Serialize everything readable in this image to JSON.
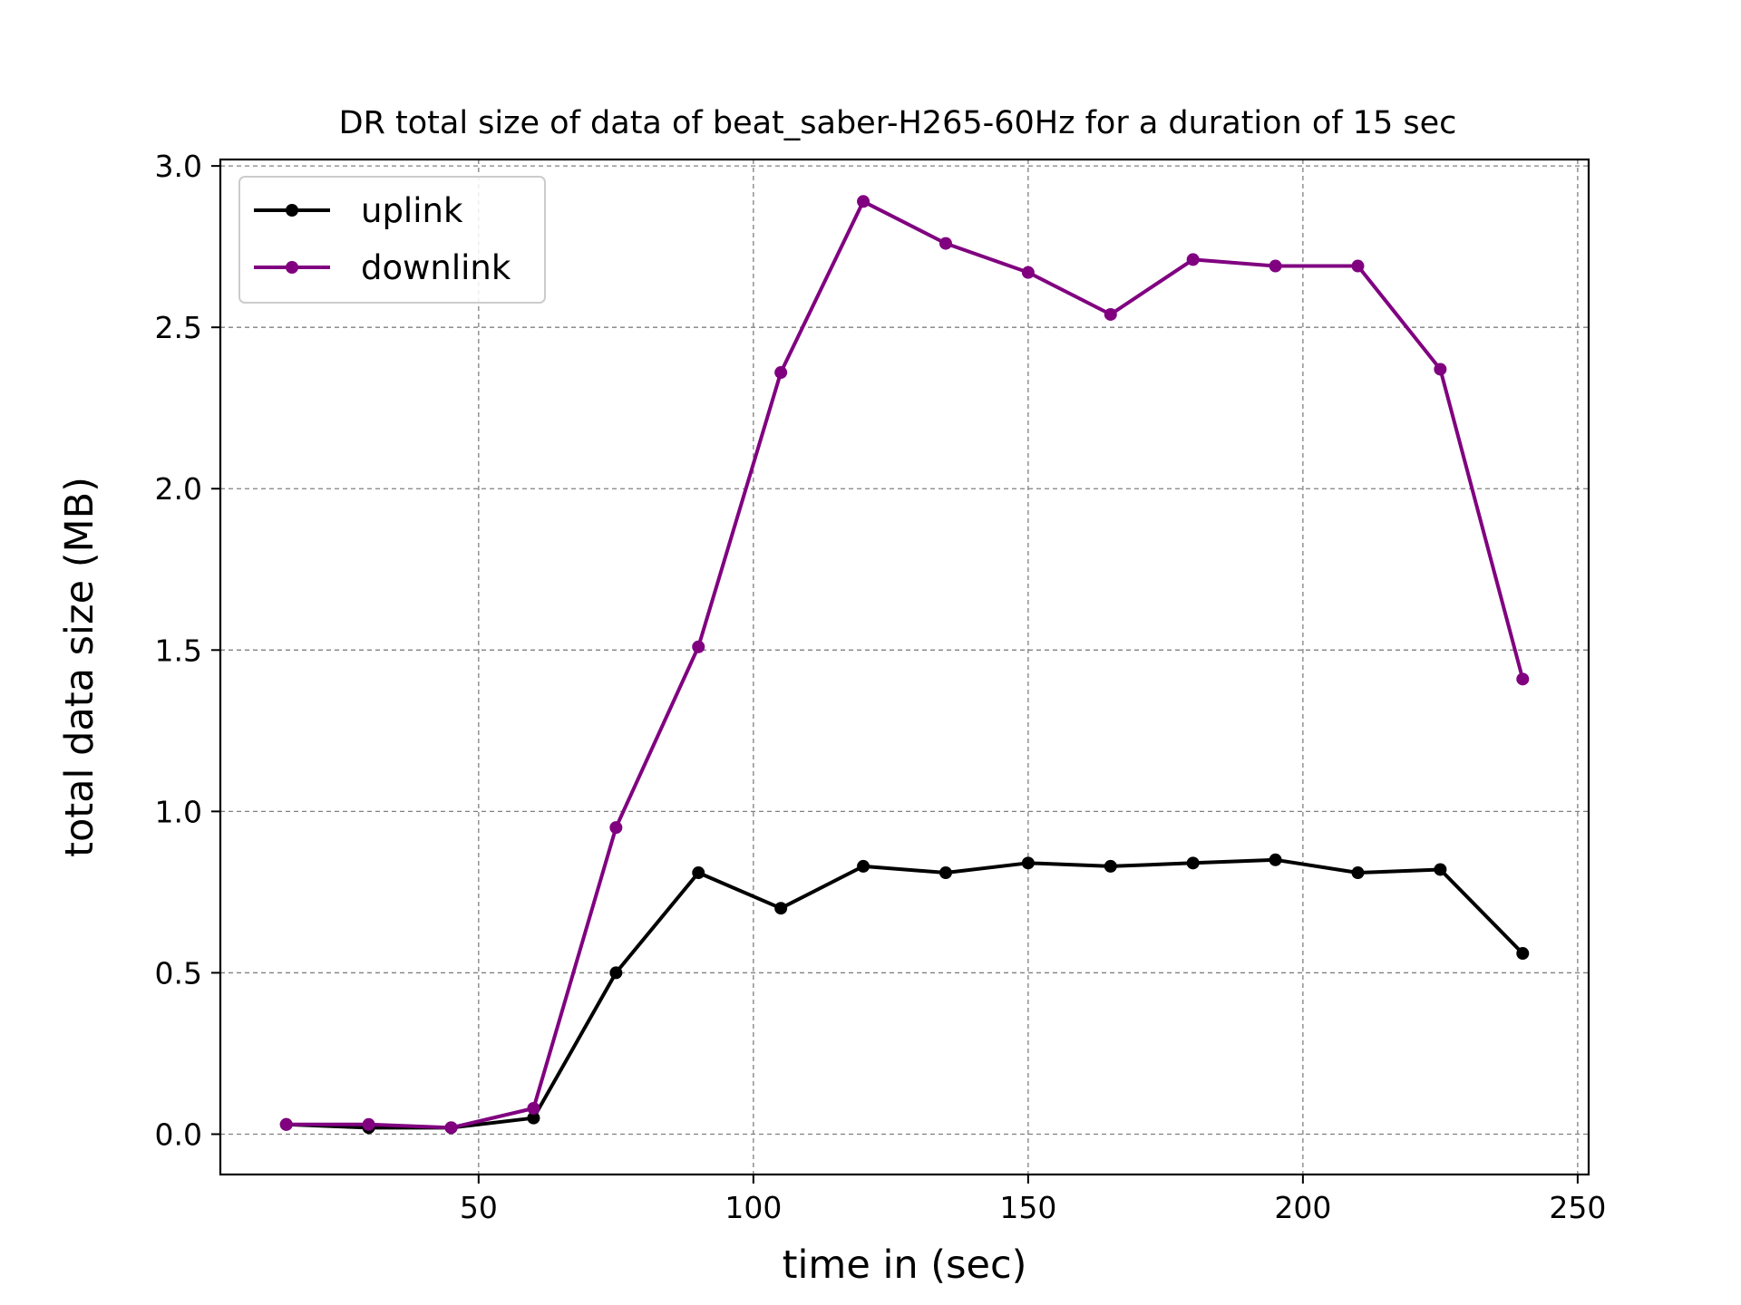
{
  "chart_data": {
    "type": "line",
    "title": "DR total size of data of beat_saber-H265-60Hz for a duration of 15 sec",
    "xlabel": "time in (sec)",
    "ylabel": "total data size (MB)",
    "xlim": [
      3,
      252
    ],
    "ylim": [
      -0.125,
      3.02
    ],
    "xticks": [
      50,
      100,
      150,
      200,
      250
    ],
    "xtick_labels": [
      "50",
      "100",
      "150",
      "200",
      "250"
    ],
    "yticks": [
      0.0,
      0.5,
      1.0,
      1.5,
      2.0,
      2.5,
      3.0
    ],
    "ytick_labels": [
      "0.0",
      "0.5",
      "1.0",
      "1.5",
      "2.0",
      "2.5",
      "3.0"
    ],
    "grid": true,
    "legend_position": "top-left",
    "x": [
      15,
      30,
      45,
      60,
      75,
      90,
      105,
      120,
      135,
      150,
      165,
      180,
      195,
      210,
      225,
      240
    ],
    "series": [
      {
        "name": "uplink",
        "color": "#000000",
        "values": [
          0.03,
          0.02,
          0.02,
          0.05,
          0.5,
          0.81,
          0.7,
          0.83,
          0.81,
          0.84,
          0.83,
          0.84,
          0.85,
          0.81,
          0.82,
          0.56
        ]
      },
      {
        "name": "downlink",
        "color": "#800080",
        "values": [
          0.03,
          0.03,
          0.02,
          0.08,
          0.95,
          1.51,
          2.36,
          2.89,
          2.76,
          2.67,
          2.54,
          2.71,
          2.69,
          2.69,
          2.37,
          1.41
        ]
      }
    ]
  }
}
